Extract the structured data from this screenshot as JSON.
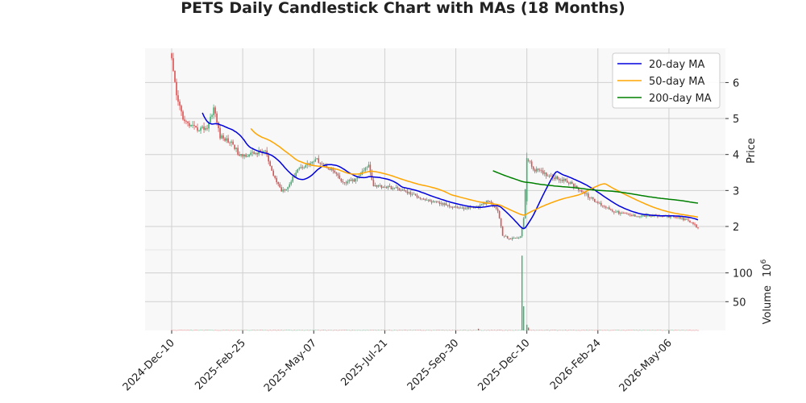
{
  "chart_data": {
    "type": "candlestick",
    "title": "PETS Daily Candlestick Chart with MAs (18 Months)",
    "price_ylabel": "Price",
    "volume_ylabel": "Volume",
    "volume_exponent": "10",
    "volume_exponent_power": "6",
    "x_tick_labels": [
      "2024-Dec-10",
      "2025-Feb-25",
      "2025-May-07",
      "2025-Jul-21",
      "2025-Sep-30",
      "2025-Dec-10",
      "2026-Feb-24",
      "2026-May-06"
    ],
    "price_ticks": [
      "2",
      "3",
      "4",
      "5",
      "6"
    ],
    "volume_ticks": [
      "50",
      "100"
    ],
    "price_ylim": [
      1.35,
      6.95
    ],
    "volume_ylim": [
      0,
      140
    ],
    "legend": [
      {
        "label": "20-day MA",
        "color": "#0000dd"
      },
      {
        "label": "50-day MA",
        "color": "#ffa500"
      },
      {
        "label": "200-day MA",
        "color": "#008000"
      }
    ],
    "colors": {
      "up": "#3cb371",
      "down": "#e05050",
      "grid": "#d0d0d0",
      "panel_bg": "#f8f8f8"
    },
    "price_anchors": [
      [
        0,
        6.6
      ],
      [
        3,
        5.6
      ],
      [
        8,
        4.9
      ],
      [
        15,
        4.7
      ],
      [
        22,
        4.75
      ],
      [
        26,
        5.3
      ],
      [
        30,
        4.5
      ],
      [
        38,
        4.3
      ],
      [
        42,
        3.95
      ],
      [
        58,
        4.1
      ],
      [
        62,
        3.5
      ],
      [
        68,
        3.0
      ],
      [
        72,
        3.1
      ],
      [
        78,
        3.6
      ],
      [
        90,
        3.85
      ],
      [
        100,
        3.55
      ],
      [
        106,
        3.2
      ],
      [
        114,
        3.3
      ],
      [
        122,
        3.7
      ],
      [
        125,
        3.15
      ],
      [
        140,
        3.05
      ],
      [
        160,
        2.7
      ],
      [
        180,
        2.5
      ],
      [
        190,
        2.55
      ],
      [
        196,
        2.7
      ],
      [
        202,
        2.45
      ],
      [
        205,
        1.75
      ],
      [
        210,
        1.65
      ],
      [
        216,
        1.72
      ],
      [
        218,
        2.2
      ],
      [
        220,
        3.9
      ],
      [
        224,
        3.6
      ],
      [
        232,
        3.45
      ],
      [
        245,
        3.25
      ],
      [
        252,
        3.05
      ],
      [
        262,
        2.7
      ],
      [
        275,
        2.4
      ],
      [
        285,
        2.3
      ],
      [
        300,
        2.3
      ],
      [
        315,
        2.25
      ],
      [
        322,
        2.1
      ],
      [
        326,
        1.95
      ]
    ],
    "volume_spikes": [
      [
        217,
        130
      ],
      [
        218,
        42
      ],
      [
        220,
        10
      ],
      [
        221,
        5
      ],
      [
        190,
        3
      ]
    ],
    "ma_periods": [
      20,
      50,
      200
    ],
    "n_days": 327,
    "x_tick_index": [
      0,
      44,
      88,
      132,
      176,
      220,
      264,
      308
    ]
  }
}
